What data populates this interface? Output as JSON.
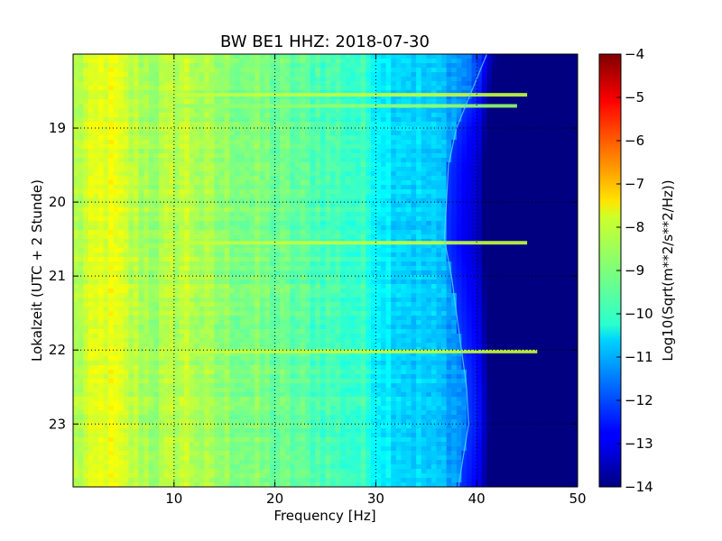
{
  "chart_data": {
    "type": "heatmap",
    "title": "BW BE1 HHZ: 2018-07-30",
    "xlabel": "Frequency [Hz]",
    "ylabel": "Lokalzeit (UTC + 2 Stunde)",
    "xlim": [
      0,
      50
    ],
    "ylim": [
      18.0,
      23.85
    ],
    "y_inverted": true,
    "grid": true,
    "colormap": "jet",
    "x_ticks": [
      10,
      20,
      30,
      40,
      50
    ],
    "x_tick_labels": [
      "10",
      "20",
      "30",
      "40",
      "50"
    ],
    "y_ticks": [
      19,
      20,
      21,
      22,
      23
    ],
    "y_tick_labels": [
      "19",
      "20",
      "21",
      "22",
      "23"
    ],
    "colorbar": {
      "label": "Log10(Sqrt(m**2/s**2/Hz))",
      "range": [
        -14,
        -4
      ],
      "ticks": [
        -4,
        -5,
        -6,
        -7,
        -8,
        -9,
        -10,
        -11,
        -12,
        -13,
        -14
      ],
      "tick_labels": [
        "−4",
        "−5",
        "−6",
        "−7",
        "−8",
        "−9",
        "−10",
        "−11",
        "−12",
        "−13",
        "−14"
      ]
    },
    "frequency_profile": {
      "frequency_hz": [
        0,
        2,
        3,
        4,
        5,
        8,
        10,
        11,
        12,
        14,
        16,
        20,
        25,
        29,
        30,
        32,
        34,
        36,
        37,
        38,
        39,
        40,
        41,
        42,
        43,
        45,
        50
      ],
      "level": [
        -8.6,
        -8.2,
        -8.0,
        -8.0,
        -8.3,
        -8.7,
        -8.5,
        -8.3,
        -8.5,
        -8.8,
        -8.9,
        -9.2,
        -9.5,
        -9.8,
        -10.2,
        -10.5,
        -10.7,
        -10.9,
        -11.0,
        -11.2,
        -11.5,
        -12.0,
        -13.0,
        -13.6,
        -14.0,
        -14.0,
        -14.0
      ]
    },
    "horizontal_lines": [
      {
        "time": 18.55,
        "freq_range": [
          10,
          45
        ],
        "level": -8.3
      },
      {
        "time": 18.7,
        "freq_range": [
          10,
          44
        ],
        "level": -8.8
      },
      {
        "time": 20.55,
        "freq_range": [
          10,
          45
        ],
        "level": -8.3
      },
      {
        "time": 22.02,
        "freq_range": [
          10,
          46
        ],
        "level": -8.3
      }
    ],
    "cutoff_curve": {
      "time": [
        18.0,
        18.5,
        19.0,
        19.5,
        20.0,
        20.5,
        21.0,
        21.5,
        22.0,
        22.5,
        23.0,
        23.5,
        23.85
      ],
      "frequency_hz": [
        41,
        39.5,
        38,
        37.2,
        37,
        36.8,
        37.5,
        38,
        38.5,
        39,
        39.2,
        38.6,
        38.2
      ]
    }
  }
}
